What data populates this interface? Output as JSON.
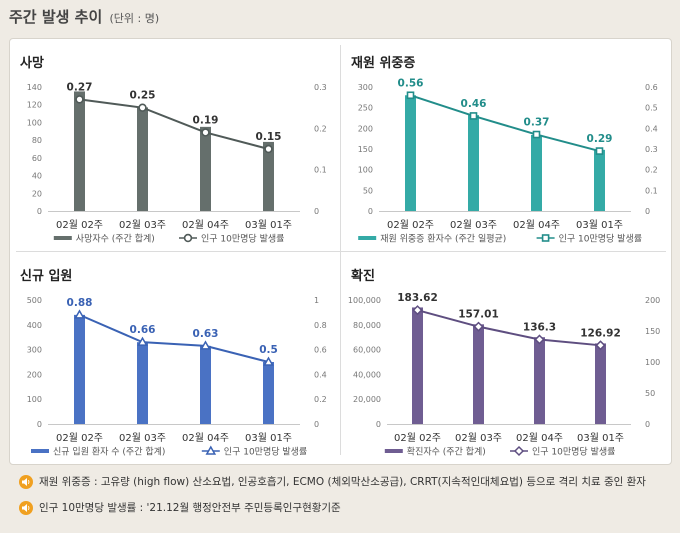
{
  "page": {
    "title": "주간 발생 추이",
    "unit": "(단위 : 명)"
  },
  "chart_data": [
    {
      "type": "bar",
      "title": "사망",
      "categories": [
        "02월 02주",
        "02월 03주",
        "02월 04주",
        "03월 01주"
      ],
      "series": [
        {
          "name": "사망자수 (주간 합계)",
          "kind": "bar",
          "axis": "left",
          "values": [
            135,
            117,
            95,
            78
          ]
        },
        {
          "name": "인구 10만명당 발생률",
          "kind": "line",
          "axis": "right",
          "marker": "circle",
          "values": [
            0.27,
            0.25,
            0.19,
            0.15
          ],
          "labels": [
            "0.27",
            "0.25",
            "0.19",
            "0.15"
          ]
        }
      ],
      "left_axis": {
        "ylim": [
          0,
          140
        ],
        "ticks": [
          "0",
          "20",
          "40",
          "60",
          "80",
          "100",
          "120",
          "140"
        ]
      },
      "right_axis": {
        "ylim": [
          0,
          0.3
        ],
        "ticks": [
          "0",
          "0.1",
          "0.2",
          "0.3"
        ]
      },
      "colors": {
        "bar": "#656f6c",
        "line": "#505a58",
        "label": "#333333"
      },
      "legend_position": "bottom"
    },
    {
      "type": "bar",
      "title": "재원 위중증",
      "categories": [
        "02월 02주",
        "02월 03주",
        "02월 04주",
        "03월 01주"
      ],
      "series": [
        {
          "name": "재원 위중증 환자수 (주간 일평균)",
          "kind": "bar",
          "axis": "left",
          "values": [
            280,
            232,
            184,
            148
          ]
        },
        {
          "name": "인구 10만명당 발생률",
          "kind": "line",
          "axis": "right",
          "marker": "square",
          "values": [
            0.56,
            0.46,
            0.37,
            0.29
          ],
          "labels": [
            "0.56",
            "0.46",
            "0.37",
            "0.29"
          ]
        }
      ],
      "left_axis": {
        "ylim": [
          0,
          300
        ],
        "ticks": [
          "0",
          "50",
          "100",
          "150",
          "200",
          "250",
          "300"
        ]
      },
      "right_axis": {
        "ylim": [
          0,
          0.6
        ],
        "ticks": [
          "0",
          "0.1",
          "0.2",
          "0.3",
          "0.4",
          "0.5",
          "0.6"
        ]
      },
      "colors": {
        "bar": "#34aaa6",
        "line": "#228d8a",
        "label": "#228d8a"
      },
      "legend_position": "bottom"
    },
    {
      "type": "bar",
      "title": "신규 입원",
      "categories": [
        "02월 02주",
        "02월 03주",
        "02월 04주",
        "03월 01주"
      ],
      "series": [
        {
          "name": "신규 입원 환자 수 (주간 합계)",
          "kind": "bar",
          "axis": "left",
          "values": [
            440,
            330,
            315,
            250
          ]
        },
        {
          "name": "인구 10만명당 발생률",
          "kind": "line",
          "axis": "right",
          "marker": "triangle",
          "values": [
            0.88,
            0.66,
            0.63,
            0.5
          ],
          "labels": [
            "0.88",
            "0.66",
            "0.63",
            "0.5"
          ]
        }
      ],
      "left_axis": {
        "ylim": [
          0,
          500
        ],
        "ticks": [
          "0",
          "100",
          "200",
          "300",
          "400",
          "500"
        ]
      },
      "right_axis": {
        "ylim": [
          0,
          1
        ],
        "ticks": [
          "0",
          "0.2",
          "0.4",
          "0.6",
          "0.8",
          "1"
        ]
      },
      "colors": {
        "bar": "#4a72c4",
        "line": "#3a62b4",
        "label": "#3a62b4"
      },
      "legend_position": "bottom"
    },
    {
      "type": "bar",
      "title": "확진",
      "categories": [
        "02월 02주",
        "02월 03주",
        "02월 04주",
        "03월 01주"
      ],
      "series": [
        {
          "name": "확진자수 (주간 합계)",
          "kind": "bar",
          "axis": "left",
          "values": [
            94000,
            80400,
            70000,
            65000
          ]
        },
        {
          "name": "인구 10만명당 발생률",
          "kind": "line",
          "axis": "right",
          "marker": "diamond",
          "values": [
            183.62,
            157.01,
            136.3,
            126.92
          ],
          "labels": [
            "183.62",
            "157.01",
            "136.3",
            "126.92"
          ]
        }
      ],
      "left_axis": {
        "ylim": [
          0,
          100000
        ],
        "ticks": [
          "0",
          "20,000",
          "40,000",
          "60,000",
          "80,000",
          "100,000"
        ]
      },
      "right_axis": {
        "ylim": [
          0,
          200
        ],
        "ticks": [
          "0",
          "50",
          "100",
          "150",
          "200"
        ]
      },
      "colors": {
        "bar": "#6f5d92",
        "line": "#5e4e80",
        "label": "#333333"
      },
      "legend_position": "bottom"
    }
  ],
  "notes": [
    {
      "icon": "speaker-icon",
      "text": "재원 위중증 : 고유량 (high flow) 산소요법, 인공호흡기, ECMO (체외막산소공급), CRRT(지속적인대체요법) 등으로 격리 치료 중인 환자"
    },
    {
      "icon": "speaker-icon",
      "text": "인구 10만명당 발생률 : '21.12월 행정안전부 주민등록인구현황기준"
    }
  ],
  "colors": {
    "background": "#efebe4",
    "panel": "#ffffff",
    "note_icon": "#f0a020"
  }
}
